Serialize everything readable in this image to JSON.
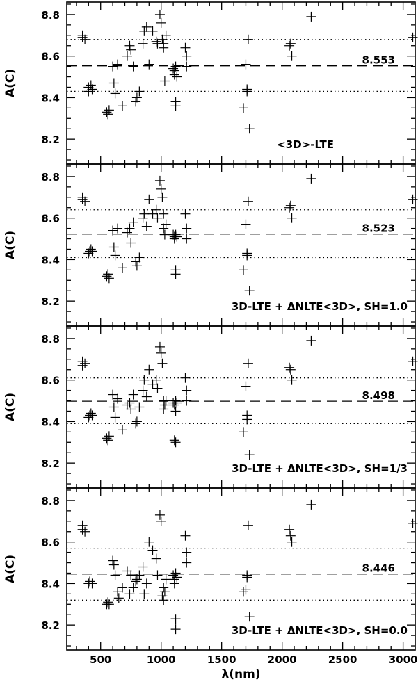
{
  "chart_data": {
    "type": "scatter",
    "marker": "plus",
    "xlabel": "λ(nm)",
    "ylabel": "A(C)",
    "xlim": [
      220,
      3100
    ],
    "ylim": [
      8.08,
      8.86
    ],
    "x_ticks": [
      500,
      1000,
      1500,
      2000,
      2500,
      3000
    ],
    "y_ticks": [
      8.2,
      8.4,
      8.6,
      8.8
    ],
    "panels": [
      {
        "label": "<3D>-LTE",
        "mean": 8.553,
        "mean_label": "8.553",
        "upper": 8.68,
        "lower": 8.43,
        "points": [
          [
            350,
            8.7
          ],
          [
            350,
            8.69
          ],
          [
            370,
            8.68
          ],
          [
            400,
            8.43
          ],
          [
            400,
            8.45
          ],
          [
            420,
            8.46
          ],
          [
            430,
            8.44
          ],
          [
            550,
            8.33
          ],
          [
            560,
            8.32
          ],
          [
            570,
            8.34
          ],
          [
            600,
            8.55
          ],
          [
            610,
            8.47
          ],
          [
            620,
            8.42
          ],
          [
            640,
            8.56
          ],
          [
            680,
            8.36
          ],
          [
            720,
            8.6
          ],
          [
            740,
            8.65
          ],
          [
            750,
            8.63
          ],
          [
            770,
            8.55
          ],
          [
            790,
            8.38
          ],
          [
            800,
            8.4
          ],
          [
            820,
            8.43
          ],
          [
            850,
            8.66
          ],
          [
            860,
            8.72
          ],
          [
            880,
            8.74
          ],
          [
            900,
            8.56
          ],
          [
            930,
            8.72
          ],
          [
            960,
            8.67
          ],
          [
            970,
            8.66
          ],
          [
            990,
            8.8
          ],
          [
            1000,
            8.76
          ],
          [
            1010,
            8.68
          ],
          [
            1020,
            8.64
          ],
          [
            1020,
            8.66
          ],
          [
            1030,
            8.48
          ],
          [
            1040,
            8.7
          ],
          [
            1100,
            8.54
          ],
          [
            1110,
            8.53
          ],
          [
            1110,
            8.51
          ],
          [
            1120,
            8.55
          ],
          [
            1120,
            8.38
          ],
          [
            1120,
            8.36
          ],
          [
            1130,
            8.5
          ],
          [
            1200,
            8.64
          ],
          [
            1210,
            8.6
          ],
          [
            1210,
            8.55
          ],
          [
            1680,
            8.35
          ],
          [
            1700,
            8.56
          ],
          [
            1710,
            8.44
          ],
          [
            1710,
            8.43
          ],
          [
            1720,
            8.68
          ],
          [
            1730,
            8.25
          ],
          [
            2060,
            8.65
          ],
          [
            2070,
            8.66
          ],
          [
            2080,
            8.6
          ],
          [
            2240,
            8.79
          ],
          [
            3080,
            8.69
          ]
        ]
      },
      {
        "label": "3D-LTE + ΔNLTE<3D>, SH=1.0",
        "mean": 8.523,
        "mean_label": "8.523",
        "upper": 8.64,
        "lower": 8.41,
        "points": [
          [
            350,
            8.7
          ],
          [
            350,
            8.69
          ],
          [
            370,
            8.68
          ],
          [
            400,
            8.43
          ],
          [
            410,
            8.44
          ],
          [
            420,
            8.45
          ],
          [
            430,
            8.44
          ],
          [
            550,
            8.32
          ],
          [
            560,
            8.33
          ],
          [
            570,
            8.31
          ],
          [
            600,
            8.54
          ],
          [
            610,
            8.46
          ],
          [
            620,
            8.42
          ],
          [
            640,
            8.55
          ],
          [
            680,
            8.36
          ],
          [
            720,
            8.53
          ],
          [
            740,
            8.55
          ],
          [
            750,
            8.48
          ],
          [
            770,
            8.58
          ],
          [
            790,
            8.39
          ],
          [
            800,
            8.37
          ],
          [
            820,
            8.41
          ],
          [
            850,
            8.6
          ],
          [
            860,
            8.62
          ],
          [
            880,
            8.56
          ],
          [
            900,
            8.69
          ],
          [
            930,
            8.62
          ],
          [
            960,
            8.64
          ],
          [
            970,
            8.6
          ],
          [
            990,
            8.78
          ],
          [
            1000,
            8.74
          ],
          [
            1010,
            8.7
          ],
          [
            1020,
            8.62
          ],
          [
            1020,
            8.55
          ],
          [
            1030,
            8.52
          ],
          [
            1040,
            8.57
          ],
          [
            1100,
            8.52
          ],
          [
            1110,
            8.51
          ],
          [
            1110,
            8.5
          ],
          [
            1120,
            8.52
          ],
          [
            1120,
            8.35
          ],
          [
            1120,
            8.33
          ],
          [
            1130,
            8.51
          ],
          [
            1200,
            8.62
          ],
          [
            1210,
            8.55
          ],
          [
            1210,
            8.5
          ],
          [
            1680,
            8.35
          ],
          [
            1700,
            8.57
          ],
          [
            1710,
            8.43
          ],
          [
            1710,
            8.42
          ],
          [
            1720,
            8.68
          ],
          [
            1730,
            8.25
          ],
          [
            2060,
            8.65
          ],
          [
            2070,
            8.66
          ],
          [
            2080,
            8.6
          ],
          [
            2240,
            8.79
          ],
          [
            3080,
            8.69
          ]
        ]
      },
      {
        "label": "3D-LTE + ΔNLTE<3D>, SH=1/3",
        "mean": 8.498,
        "mean_label": "8.498",
        "upper": 8.61,
        "lower": 8.39,
        "points": [
          [
            350,
            8.69
          ],
          [
            350,
            8.67
          ],
          [
            370,
            8.68
          ],
          [
            400,
            8.42
          ],
          [
            410,
            8.43
          ],
          [
            420,
            8.44
          ],
          [
            430,
            8.43
          ],
          [
            550,
            8.32
          ],
          [
            560,
            8.31
          ],
          [
            570,
            8.33
          ],
          [
            600,
            8.53
          ],
          [
            610,
            8.47
          ],
          [
            620,
            8.42
          ],
          [
            640,
            8.51
          ],
          [
            680,
            8.36
          ],
          [
            720,
            8.48
          ],
          [
            740,
            8.49
          ],
          [
            750,
            8.46
          ],
          [
            770,
            8.53
          ],
          [
            790,
            8.39
          ],
          [
            800,
            8.4
          ],
          [
            820,
            8.47
          ],
          [
            850,
            8.55
          ],
          [
            860,
            8.6
          ],
          [
            880,
            8.52
          ],
          [
            900,
            8.65
          ],
          [
            930,
            8.58
          ],
          [
            960,
            8.6
          ],
          [
            970,
            8.56
          ],
          [
            990,
            8.76
          ],
          [
            1000,
            8.73
          ],
          [
            1010,
            8.68
          ],
          [
            1020,
            8.5
          ],
          [
            1020,
            8.46
          ],
          [
            1030,
            8.48
          ],
          [
            1040,
            8.5
          ],
          [
            1100,
            8.49
          ],
          [
            1110,
            8.48
          ],
          [
            1110,
            8.31
          ],
          [
            1120,
            8.3
          ],
          [
            1120,
            8.5
          ],
          [
            1120,
            8.45
          ],
          [
            1130,
            8.49
          ],
          [
            1200,
            8.61
          ],
          [
            1210,
            8.55
          ],
          [
            1210,
            8.5
          ],
          [
            1680,
            8.35
          ],
          [
            1700,
            8.57
          ],
          [
            1710,
            8.43
          ],
          [
            1710,
            8.41
          ],
          [
            1720,
            8.68
          ],
          [
            1730,
            8.24
          ],
          [
            2060,
            8.66
          ],
          [
            2070,
            8.65
          ],
          [
            2080,
            8.6
          ],
          [
            2240,
            8.79
          ],
          [
            3080,
            8.69
          ]
        ]
      },
      {
        "label": "3D-LTE + ΔNLTE<3D>, SH=0.0",
        "mean": 8.446,
        "mean_label": "8.446",
        "upper": 8.57,
        "lower": 8.32,
        "points": [
          [
            350,
            8.68
          ],
          [
            350,
            8.66
          ],
          [
            370,
            8.65
          ],
          [
            400,
            8.4
          ],
          [
            410,
            8.41
          ],
          [
            430,
            8.4
          ],
          [
            550,
            8.3
          ],
          [
            560,
            8.31
          ],
          [
            570,
            8.3
          ],
          [
            600,
            8.51
          ],
          [
            610,
            8.49
          ],
          [
            620,
            8.44
          ],
          [
            640,
            8.36
          ],
          [
            650,
            8.33
          ],
          [
            680,
            8.38
          ],
          [
            720,
            8.46
          ],
          [
            740,
            8.35
          ],
          [
            750,
            8.44
          ],
          [
            770,
            8.38
          ],
          [
            790,
            8.41
          ],
          [
            800,
            8.42
          ],
          [
            820,
            8.44
          ],
          [
            850,
            8.48
          ],
          [
            860,
            8.35
          ],
          [
            880,
            8.4
          ],
          [
            900,
            8.6
          ],
          [
            930,
            8.56
          ],
          [
            960,
            8.52
          ],
          [
            970,
            8.44
          ],
          [
            990,
            8.73
          ],
          [
            1000,
            8.7
          ],
          [
            1010,
            8.34
          ],
          [
            1020,
            8.32
          ],
          [
            1020,
            8.38
          ],
          [
            1030,
            8.36
          ],
          [
            1040,
            8.42
          ],
          [
            1100,
            8.44
          ],
          [
            1110,
            8.42
          ],
          [
            1110,
            8.4
          ],
          [
            1120,
            8.23
          ],
          [
            1120,
            8.18
          ],
          [
            1120,
            8.45
          ],
          [
            1130,
            8.43
          ],
          [
            1200,
            8.63
          ],
          [
            1210,
            8.55
          ],
          [
            1210,
            8.5
          ],
          [
            1680,
            8.36
          ],
          [
            1700,
            8.37
          ],
          [
            1710,
            8.44
          ],
          [
            1710,
            8.43
          ],
          [
            1720,
            8.68
          ],
          [
            1730,
            8.24
          ],
          [
            2060,
            8.66
          ],
          [
            2070,
            8.63
          ],
          [
            2080,
            8.6
          ],
          [
            2240,
            8.78
          ],
          [
            3080,
            8.69
          ]
        ]
      }
    ]
  }
}
